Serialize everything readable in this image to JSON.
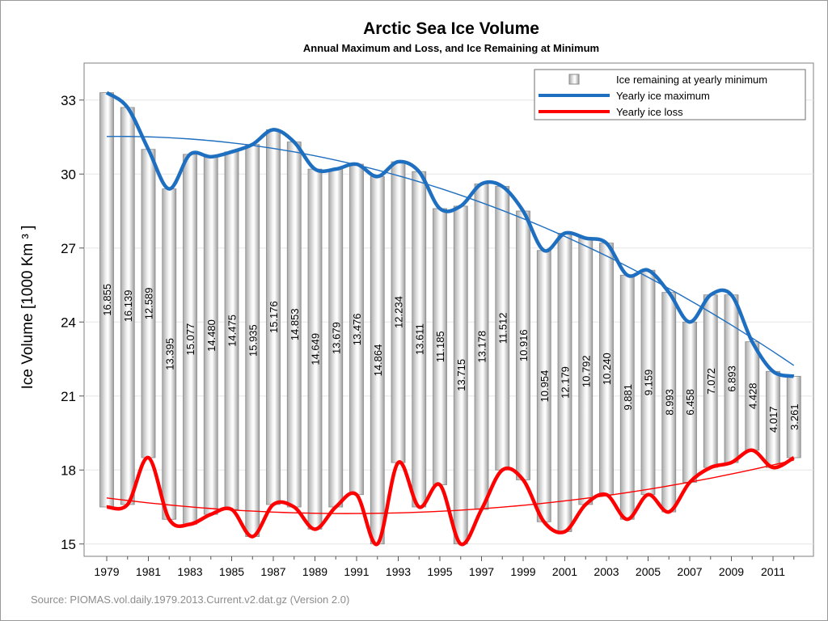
{
  "chart_data": {
    "type": "bar",
    "title": "Arctic Sea Ice Volume",
    "subtitle": "Annual Maximum and Loss, and Ice Remaining at Minimum",
    "ylabel": "Ice Volume [1000 Km ³ ]",
    "xlabel": "",
    "source": "Source: PIOMAS.vol.daily.1979.2013.Current.v2.dat.gz (Version 2.0)",
    "ylim": [
      14.5,
      34.5
    ],
    "yticks": [
      "15",
      "18",
      "21",
      "24",
      "27",
      "30",
      "33"
    ],
    "xticks": [
      "1979",
      "1981",
      "1983",
      "1985",
      "1987",
      "1989",
      "1991",
      "1993",
      "1995",
      "1997",
      "1999",
      "2001",
      "2003",
      "2005",
      "2007",
      "2009",
      "2011"
    ],
    "grid": true,
    "legend_position": "top-right",
    "legend": [
      "Ice remaining at yearly minimum",
      "Yearly ice maximum",
      "Yearly ice loss"
    ],
    "colors": {
      "maximum": "#1f6fc0",
      "loss": "#ff0000",
      "bar": "#c8c8c8",
      "bar_edge": "#8a8a8a"
    },
    "x": [
      1979,
      1980,
      1981,
      1982,
      1983,
      1984,
      1985,
      1986,
      1987,
      1988,
      1989,
      1990,
      1991,
      1992,
      1993,
      1994,
      1995,
      1996,
      1997,
      1998,
      1999,
      2000,
      2001,
      2002,
      2003,
      2004,
      2005,
      2006,
      2007,
      2008,
      2009,
      2010,
      2011,
      2012
    ],
    "series": [
      {
        "name": "Yearly ice maximum",
        "type": "line",
        "values": [
          33.3,
          32.7,
          31.0,
          29.4,
          30.8,
          30.7,
          30.9,
          31.2,
          31.8,
          31.3,
          30.2,
          30.2,
          30.4,
          29.9,
          30.5,
          30.1,
          28.6,
          28.7,
          29.6,
          29.5,
          28.5,
          26.9,
          27.6,
          27.4,
          27.2,
          25.9,
          26.1,
          25.2,
          24.0,
          25.1,
          25.1,
          23.2,
          22.0,
          21.8
        ]
      },
      {
        "name": "Yearly ice loss",
        "type": "line",
        "values": [
          16.5,
          16.6,
          18.5,
          16.0,
          15.8,
          16.2,
          16.4,
          15.3,
          16.6,
          16.5,
          15.6,
          16.5,
          17.0,
          15.0,
          18.3,
          16.5,
          17.4,
          15.0,
          16.4,
          18.0,
          17.6,
          15.9,
          15.5,
          16.6,
          17.0,
          16.0,
          17.0,
          16.3,
          17.5,
          18.1,
          18.3,
          18.8,
          18.1,
          18.5
        ]
      },
      {
        "name": "Ice remaining at yearly minimum",
        "type": "bar",
        "labels": [
          "16.855",
          "16.139",
          "12.589",
          "13.395",
          "15.077",
          "14.480",
          "14.475",
          "15.935",
          "15.176",
          "14.853",
          "14.649",
          "13.679",
          "13.476",
          "14.864",
          "12.234",
          "13.611",
          "11.185",
          "13.715",
          "13.178",
          "11.512",
          "10.916",
          "10.954",
          "12.179",
          "10.792",
          "10.240",
          "9.881",
          "9.159",
          "8.993",
          "6.458",
          "7.072",
          "6.893",
          "4.428",
          "4.017",
          "3.261"
        ]
      }
    ]
  }
}
